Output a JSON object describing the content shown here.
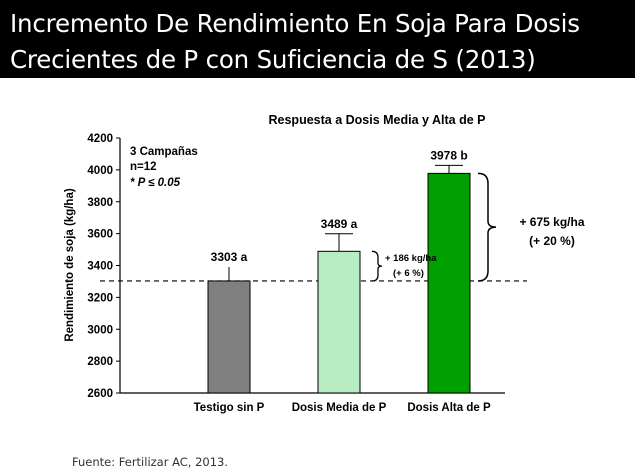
{
  "header": {
    "title_line1": "Incremento De Rendimiento En Soja Para Dosis",
    "title_line2": "Crecientes de P con Suficiencia de S (2013)"
  },
  "footer": {
    "source": "Fuente: Fertilizar AC, 2013."
  },
  "chart_data": {
    "type": "bar",
    "title": "Respuesta a Dosis Media y Alta de P",
    "xlabel": "",
    "ylabel": "Rendimiento de soja (kg/ha)",
    "ylim": [
      2600,
      4200
    ],
    "yticks": [
      2600,
      2800,
      3000,
      3200,
      3400,
      3600,
      3800,
      4000,
      4200
    ],
    "categories": [
      "Testigo sin P",
      "Dosis Media de P",
      "Dosis Alta de P"
    ],
    "values": [
      3303,
      3489,
      3978
    ],
    "error": [
      null,
      110,
      50
    ],
    "value_labels": [
      "3303  a",
      "3489  a",
      "3978  b"
    ],
    "bar_colors": [
      "#808080",
      "#b8ecc2",
      "#00a000"
    ],
    "reference_line": 3303,
    "notes": [
      "3 Campañas",
      "n=12",
      "* P ≤ 0.05"
    ],
    "annotations": [
      {
        "line1": "+ 186 kg/ha",
        "line2": "(+ 6 %)"
      },
      {
        "line1": "+ 675 kg/ha",
        "line2": "(+ 20 %)"
      }
    ],
    "grid": false,
    "legend": "none"
  }
}
